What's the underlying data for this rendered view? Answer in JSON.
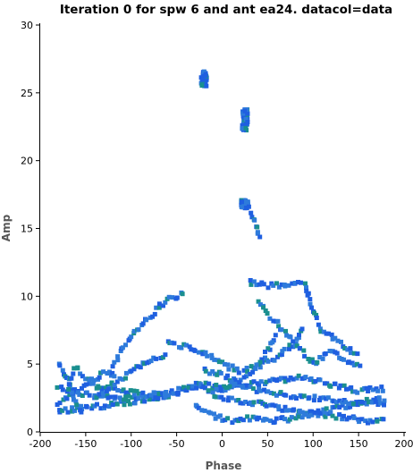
{
  "chart_data": {
    "type": "scatter",
    "title": "Iteration 0 for spw 6 and ant ea24.  datacol=data",
    "xlabel": "Phase",
    "ylabel": "Amp",
    "xlim": [
      -200,
      200
    ],
    "ylim": [
      0,
      30
    ],
    "xticks": [
      -200,
      -150,
      -100,
      -50,
      0,
      50,
      100,
      150,
      200
    ],
    "yticks": [
      0,
      5,
      10,
      15,
      20,
      25,
      30
    ],
    "grid": false,
    "legend": "none",
    "colors": [
      "#1f5fe0",
      "#1a8f8f",
      "#2e7bdb"
    ],
    "series": [
      {
        "clusters": [
          {
            "x": -20,
            "y": 26.0,
            "dx": 3,
            "dy": 0.6
          },
          {
            "x": 25,
            "y": 23.0,
            "dx": 3,
            "dy": 0.8
          },
          {
            "x": 25,
            "y": 16.8,
            "dx": 4,
            "dy": 0.3
          }
        ],
        "paths": [
          [
            [
              30,
              16.5
            ],
            [
              38,
              15.0
            ],
            [
              42,
              14.0
            ]
          ],
          [
            [
              30,
              11.0
            ],
            [
              50,
              10.8
            ],
            [
              70,
              10.8
            ],
            [
              90,
              11.0
            ]
          ],
          [
            [
              -180,
              2.0
            ],
            [
              -150,
              3.5
            ],
            [
              -120,
              3.2
            ],
            [
              -100,
              3.0
            ],
            [
              -80,
              2.5
            ],
            [
              -50,
              2.8
            ],
            [
              -30,
              3.5
            ],
            [
              0,
              2.5
            ],
            [
              20,
              2.2
            ],
            [
              50,
              2.0
            ],
            [
              80,
              1.5
            ],
            [
              120,
              1.2
            ],
            [
              160,
              0.8
            ],
            [
              180,
              0.8
            ]
          ],
          [
            [
              -180,
              1.5
            ],
            [
              -150,
              1.8
            ],
            [
              -120,
              2.0
            ],
            [
              -100,
              2.2
            ],
            [
              -80,
              2.5
            ],
            [
              -50,
              3.0
            ],
            [
              -20,
              3.5
            ],
            [
              0,
              3.2
            ],
            [
              30,
              3.5
            ],
            [
              60,
              3.8
            ],
            [
              90,
              4.0
            ],
            [
              120,
              3.5
            ],
            [
              150,
              3.0
            ],
            [
              180,
              3.2
            ]
          ],
          [
            [
              -180,
              3.2
            ],
            [
              -165,
              3.0
            ],
            [
              -150,
              2.8
            ],
            [
              -130,
              2.5
            ],
            [
              -100,
              2.5
            ],
            [
              -80,
              2.8
            ],
            [
              -60,
              3.0
            ]
          ],
          [
            [
              -120,
              5.0
            ],
            [
              -100,
              7.0
            ],
            [
              -80,
              8.5
            ],
            [
              -60,
              9.8
            ],
            [
              -40,
              10.2
            ]
          ],
          [
            [
              -140,
              2.5
            ],
            [
              -120,
              3.5
            ],
            [
              -100,
              4.5
            ],
            [
              -80,
              5.3
            ],
            [
              -60,
              5.8
            ]
          ],
          [
            [
              -60,
              6.5
            ],
            [
              -40,
              6.3
            ],
            [
              -20,
              5.8
            ],
            [
              0,
              5.0
            ],
            [
              20,
              4.5
            ],
            [
              40,
              4.8
            ],
            [
              60,
              5.5
            ],
            [
              80,
              6.5
            ],
            [
              90,
              8.0
            ]
          ],
          [
            [
              40,
              9.5
            ],
            [
              60,
              8.0
            ],
            [
              80,
              6.5
            ],
            [
              100,
              5.0
            ],
            [
              120,
              6.0
            ],
            [
              140,
              5.0
            ],
            [
              155,
              4.8
            ]
          ],
          [
            [
              -30,
              1.8
            ],
            [
              -10,
              1.2
            ],
            [
              10,
              0.8
            ],
            [
              30,
              1.0
            ],
            [
              50,
              0.8
            ],
            [
              80,
              1.0
            ],
            [
              110,
              1.5
            ],
            [
              140,
              2.0
            ],
            [
              180,
              2.5
            ]
          ],
          [
            [
              -20,
              4.5
            ],
            [
              0,
              4.2
            ],
            [
              20,
              3.5
            ],
            [
              40,
              3.0
            ],
            [
              60,
              2.8
            ],
            [
              100,
              2.5
            ],
            [
              140,
              2.2
            ],
            [
              180,
              2.0
            ]
          ],
          [
            [
              -180,
              5.0
            ],
            [
              -170,
              4.0
            ],
            [
              -165,
              3.0
            ],
            [
              -160,
              2.0
            ],
            [
              -155,
              1.5
            ]
          ],
          [
            [
              -170,
              3.3
            ],
            [
              -160,
              4.8
            ],
            [
              -150,
              4.0
            ],
            [
              -140,
              3.8
            ],
            [
              -130,
              4.5
            ],
            [
              -115,
              4.0
            ]
          ],
          [
            [
              90,
              11.0
            ],
            [
              100,
              9.0
            ],
            [
              110,
              7.5
            ],
            [
              130,
              6.5
            ],
            [
              150,
              5.5
            ]
          ],
          [
            [
              60,
              7.0
            ],
            [
              50,
              6.0
            ],
            [
              40,
              5.0
            ],
            [
              30,
              4.2
            ],
            [
              10,
              3.5
            ],
            [
              -10,
              3.0
            ]
          ]
        ]
      }
    ]
  }
}
